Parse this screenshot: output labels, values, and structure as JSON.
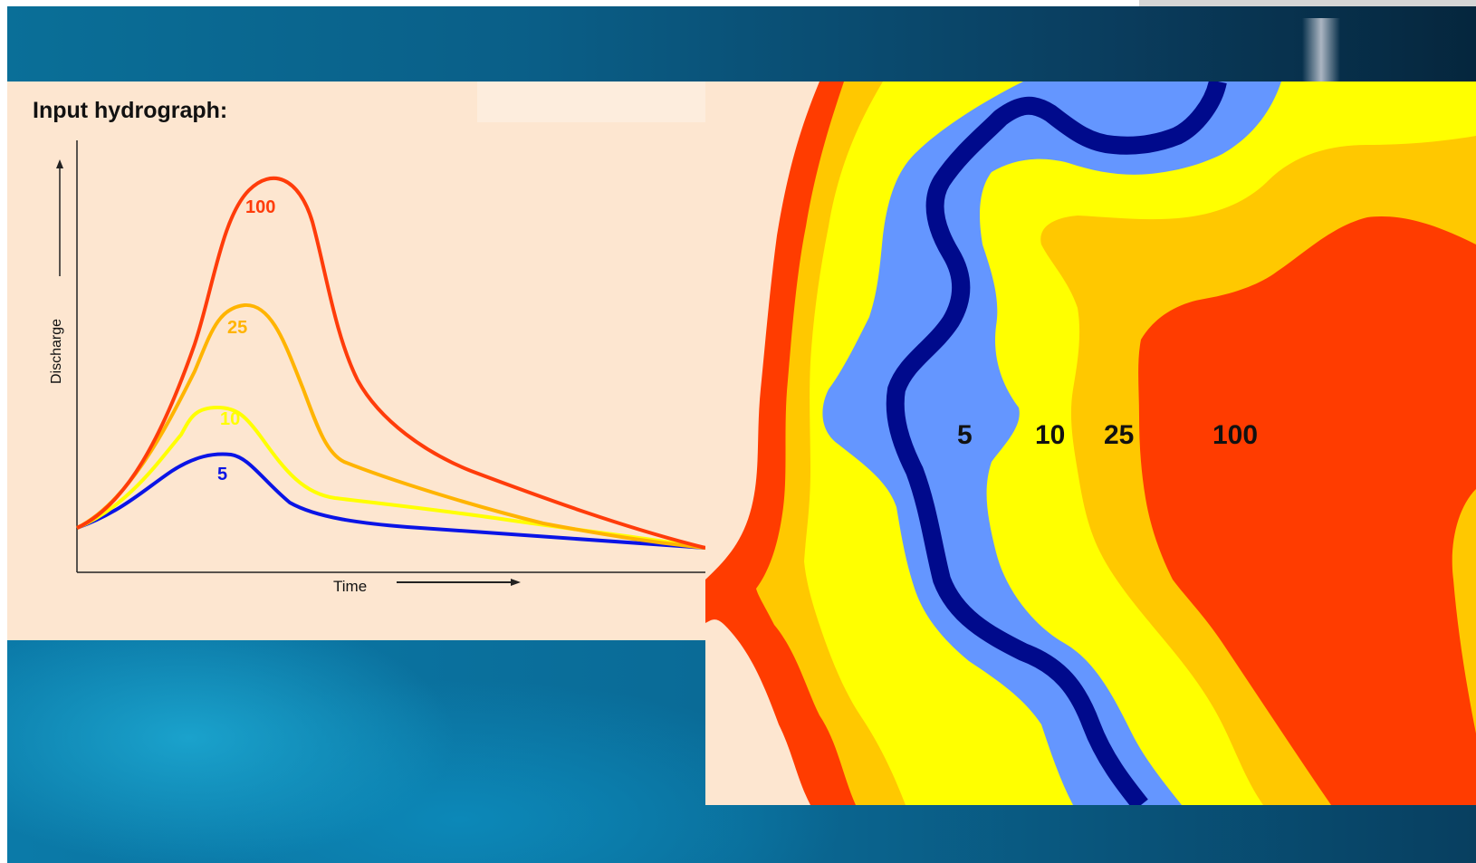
{
  "hydrograph": {
    "title": "Input hydrograph:",
    "y_axis_label": "Discharge",
    "x_axis_label": "Time",
    "curves": [
      {
        "label": "100",
        "color": "#ff3c0a"
      },
      {
        "label": "25",
        "color": "#ffb400"
      },
      {
        "label": "10",
        "color": "#ffff00"
      },
      {
        "label": "5",
        "color": "#0a14e6"
      }
    ]
  },
  "flood_map": {
    "zones": [
      {
        "label": "5",
        "color": "#6496ff"
      },
      {
        "label": "10",
        "color": "#ffff00"
      },
      {
        "label": "25",
        "color": "#ffc800"
      },
      {
        "label": "100",
        "color": "#ff3c00"
      }
    ],
    "channel_color": "#000a8c"
  }
}
